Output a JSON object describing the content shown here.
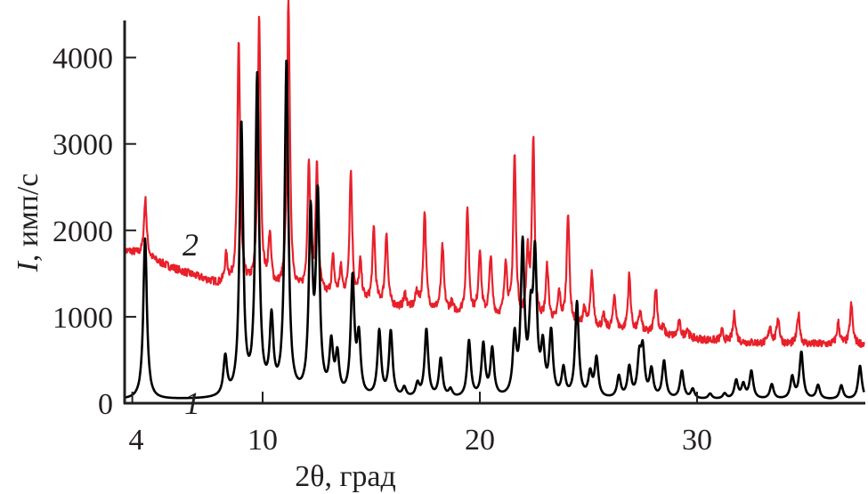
{
  "chart_data": {
    "type": "line",
    "title": "",
    "xlabel": "2θ, град",
    "ylabel_symbol": "I",
    "ylabel_unit": ", имп/с",
    "xlim": [
      3.6,
      37.7
    ],
    "ylim": [
      0,
      4440
    ],
    "x_ticks": [
      4,
      10,
      20,
      30
    ],
    "x_tick_labels": [
      "4",
      "10",
      "20",
      "30"
    ],
    "y_ticks": [
      0,
      1000,
      2000,
      3000,
      4000
    ],
    "y_tick_labels": [
      "0",
      "1000",
      "2000",
      "3000",
      "4000"
    ],
    "grid": false,
    "legend": "none",
    "series": [
      {
        "name": "2",
        "color": "#e8202a",
        "baseline": [
          [
            3.6,
            1760
          ],
          [
            4,
            1750
          ],
          [
            6,
            1550
          ],
          [
            8,
            1370
          ],
          [
            10,
            1330
          ],
          [
            12,
            1250
          ],
          [
            14,
            1180
          ],
          [
            16,
            1100
          ],
          [
            18,
            1060
          ],
          [
            20,
            1000
          ],
          [
            22,
            940
          ],
          [
            24,
            900
          ],
          [
            26,
            840
          ],
          [
            28,
            790
          ],
          [
            30,
            740
          ],
          [
            32,
            700
          ],
          [
            34,
            680
          ],
          [
            37.7,
            680
          ]
        ],
        "peaks": [
          [
            4.6,
            2360
          ],
          [
            8.32,
            1680
          ],
          [
            8.9,
            4170
          ],
          [
            9.84,
            4450
          ],
          [
            10.33,
            1900
          ],
          [
            11.19,
            4670
          ],
          [
            12.13,
            2760
          ],
          [
            12.5,
            2710
          ],
          [
            13.24,
            1650
          ],
          [
            13.6,
            1520
          ],
          [
            14.06,
            2660
          ],
          [
            14.5,
            1600
          ],
          [
            15.12,
            2010
          ],
          [
            15.7,
            1960
          ],
          [
            16.56,
            1250
          ],
          [
            17.1,
            1270
          ],
          [
            17.46,
            2210
          ],
          [
            18.28,
            1800
          ],
          [
            18.7,
            1130
          ],
          [
            19.43,
            2230
          ],
          [
            20.0,
            1760
          ],
          [
            20.5,
            1680
          ],
          [
            21.19,
            1610
          ],
          [
            21.6,
            2830
          ],
          [
            22.2,
            1660
          ],
          [
            22.46,
            2990
          ],
          [
            23.1,
            1550
          ],
          [
            23.65,
            1250
          ],
          [
            24.06,
            2190
          ],
          [
            24.8,
            1080
          ],
          [
            25.16,
            1490
          ],
          [
            25.7,
            990
          ],
          [
            26.2,
            1240
          ],
          [
            26.88,
            1470
          ],
          [
            27.38,
            1050
          ],
          [
            28.1,
            1340
          ],
          [
            28.44,
            860
          ],
          [
            29.18,
            930
          ],
          [
            29.55,
            860
          ],
          [
            31.15,
            830
          ],
          [
            31.72,
            1030
          ],
          [
            33.36,
            890
          ],
          [
            33.73,
            990
          ],
          [
            34.67,
            1030
          ],
          [
            36.5,
            930
          ],
          [
            37.1,
            1140
          ]
        ]
      },
      {
        "name": "1",
        "color": "#000000",
        "baseline": [
          [
            3.6,
            40
          ],
          [
            37.7,
            40
          ]
        ],
        "peaks": [
          [
            4.59,
            1900
          ],
          [
            8.28,
            490
          ],
          [
            9.02,
            3190
          ],
          [
            9.75,
            3720
          ],
          [
            10.41,
            890
          ],
          [
            11.1,
            3920
          ],
          [
            12.21,
            2090
          ],
          [
            12.54,
            2300
          ],
          [
            13.16,
            620
          ],
          [
            13.44,
            490
          ],
          [
            14.14,
            1400
          ],
          [
            14.43,
            700
          ],
          [
            15.37,
            800
          ],
          [
            15.9,
            800
          ],
          [
            16.52,
            150
          ],
          [
            17.13,
            190
          ],
          [
            17.54,
            830
          ],
          [
            18.2,
            490
          ],
          [
            18.65,
            130
          ],
          [
            19.5,
            700
          ],
          [
            20.16,
            650
          ],
          [
            20.57,
            590
          ],
          [
            21.6,
            700
          ],
          [
            21.97,
            1760
          ],
          [
            22.34,
            820
          ],
          [
            22.54,
            1600
          ],
          [
            22.9,
            570
          ],
          [
            23.28,
            770
          ],
          [
            23.85,
            360
          ],
          [
            24.47,
            1140
          ],
          [
            25.08,
            310
          ],
          [
            25.37,
            490
          ],
          [
            26.4,
            290
          ],
          [
            26.88,
            390
          ],
          [
            27.34,
            470
          ],
          [
            27.5,
            560
          ],
          [
            27.9,
            360
          ],
          [
            28.48,
            470
          ],
          [
            29.3,
            360
          ],
          [
            29.8,
            150
          ],
          [
            30.6,
            100
          ],
          [
            31.27,
            100
          ],
          [
            31.8,
            250
          ],
          [
            32.13,
            200
          ],
          [
            32.5,
            360
          ],
          [
            33.44,
            210
          ],
          [
            34.38,
            290
          ],
          [
            34.8,
            580
          ],
          [
            35.57,
            200
          ],
          [
            36.64,
            200
          ],
          [
            37.5,
            430
          ]
        ]
      }
    ]
  }
}
